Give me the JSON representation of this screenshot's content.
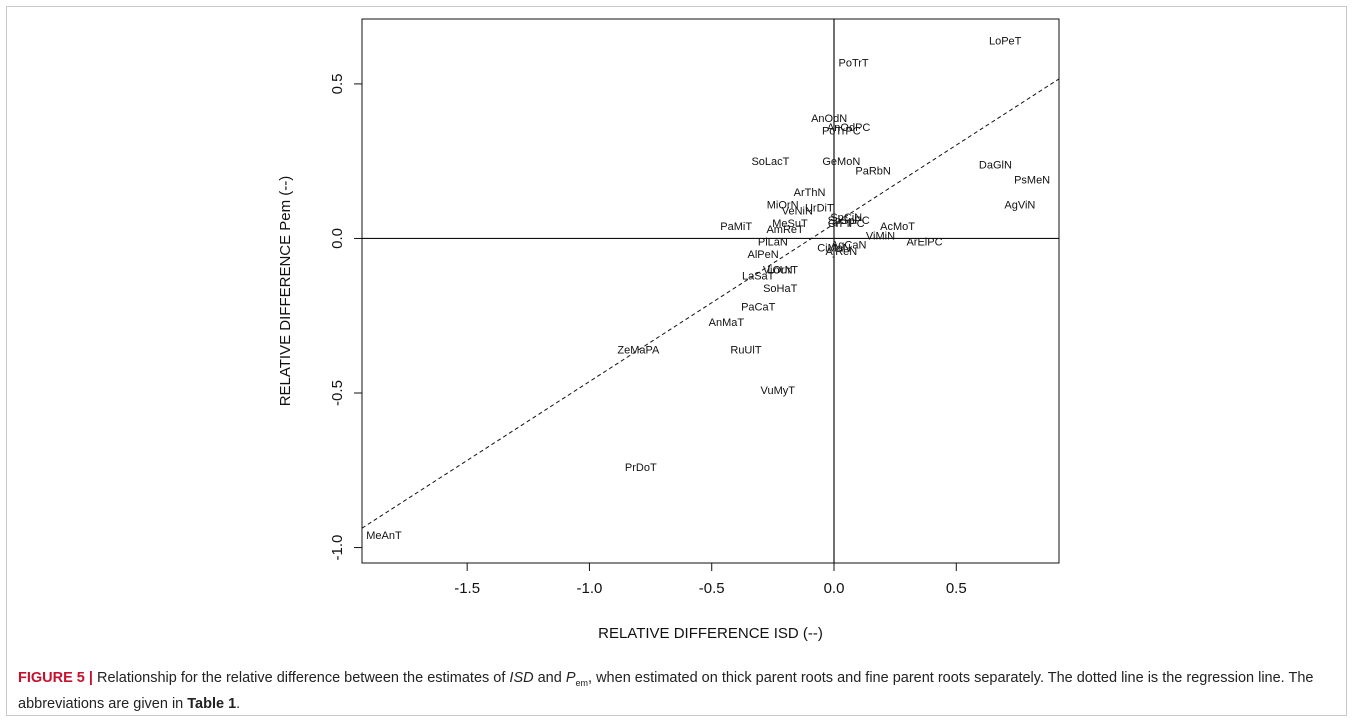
{
  "chart_data": {
    "type": "scatter",
    "xlabel": "RELATIVE DIFFERENCE ISD (--)",
    "ylabel": "RELATIVE DIFFERENCE Pem (--)",
    "xlim": [
      -1.93,
      0.92
    ],
    "ylim": [
      -1.05,
      0.71
    ],
    "x_ticks": [
      {
        "value": -1.5,
        "label": "-1.5"
      },
      {
        "value": -1.0,
        "label": "-1.0"
      },
      {
        "value": -0.5,
        "label": "-0.5"
      },
      {
        "value": 0.0,
        "label": "0.0"
      },
      {
        "value": 0.5,
        "label": "0.5"
      }
    ],
    "y_ticks": [
      {
        "value": -1.0,
        "label": "-1.0"
      },
      {
        "value": -0.5,
        "label": "-0.5"
      },
      {
        "value": 0.0,
        "label": "0.0"
      },
      {
        "value": 0.5,
        "label": "0.5"
      }
    ],
    "reference_lines": {
      "x": 0,
      "y": 0
    },
    "regression_line": {
      "style": "dashed",
      "slope": 0.51,
      "intercept": 0.047
    },
    "points": [
      {
        "label": "LoPeT",
        "x": 0.7,
        "y": 0.64
      },
      {
        "label": "PoTrT",
        "x": 0.08,
        "y": 0.57
      },
      {
        "label": "AnOdN",
        "x": -0.02,
        "y": 0.39
      },
      {
        "label": "AnOdPC",
        "x": 0.06,
        "y": 0.36
      },
      {
        "label": "PoTrPC",
        "x": 0.03,
        "y": 0.35
      },
      {
        "label": "SoLacT",
        "x": -0.26,
        "y": 0.25
      },
      {
        "label": "GeMoN",
        "x": 0.03,
        "y": 0.25
      },
      {
        "label": "PaRbN",
        "x": 0.16,
        "y": 0.22
      },
      {
        "label": "DaGlN",
        "x": 0.66,
        "y": 0.24
      },
      {
        "label": "PsMeN",
        "x": 0.81,
        "y": 0.19
      },
      {
        "label": "AgViN",
        "x": 0.76,
        "y": 0.11
      },
      {
        "label": "ArThN",
        "x": -0.1,
        "y": 0.15
      },
      {
        "label": "MiOrN",
        "x": -0.21,
        "y": 0.11
      },
      {
        "label": "UrDiT",
        "x": -0.06,
        "y": 0.1
      },
      {
        "label": "VeNiN",
        "x": -0.15,
        "y": 0.09
      },
      {
        "label": "SpCiN",
        "x": 0.05,
        "y": 0.07
      },
      {
        "label": "SpSpPC",
        "x": 0.06,
        "y": 0.06
      },
      {
        "label": "CrPiPC",
        "x": 0.05,
        "y": 0.05
      },
      {
        "label": "MeSuT",
        "x": -0.18,
        "y": 0.05
      },
      {
        "label": "AcMoT",
        "x": 0.26,
        "y": 0.04
      },
      {
        "label": "PaMiT",
        "x": -0.4,
        "y": 0.04
      },
      {
        "label": "AmReT",
        "x": -0.2,
        "y": 0.03
      },
      {
        "label": "ViMiN",
        "x": 0.19,
        "y": 0.01
      },
      {
        "label": "ArElPC",
        "x": 0.37,
        "y": -0.01
      },
      {
        "label": "PlLaN",
        "x": -0.25,
        "y": -0.01
      },
      {
        "label": "AgCaN",
        "x": 0.06,
        "y": -0.02
      },
      {
        "label": "CiMaN",
        "x": 0.0,
        "y": -0.03
      },
      {
        "label": "AjReN",
        "x": 0.03,
        "y": -0.04
      },
      {
        "label": "AlPeN",
        "x": -0.29,
        "y": -0.05
      },
      {
        "label": "ViOrN",
        "x": -0.23,
        "y": -0.1
      },
      {
        "label": "LoUrT",
        "x": -0.21,
        "y": -0.1
      },
      {
        "label": "LaSaT",
        "x": -0.31,
        "y": -0.12
      },
      {
        "label": "SoHaT",
        "x": -0.22,
        "y": -0.16
      },
      {
        "label": "PaCaT",
        "x": -0.31,
        "y": -0.22
      },
      {
        "label": "AnMaT",
        "x": -0.44,
        "y": -0.27
      },
      {
        "label": "ZeMaPA",
        "x": -0.8,
        "y": -0.36
      },
      {
        "label": "RuUlT",
        "x": -0.36,
        "y": -0.36
      },
      {
        "label": "VuMyT",
        "x": -0.23,
        "y": -0.49
      },
      {
        "label": "PrDoT",
        "x": -0.79,
        "y": -0.74
      },
      {
        "label": "MeAnT",
        "x": -1.84,
        "y": -0.96
      }
    ]
  },
  "caption": {
    "figure_label": "FIGURE 5 |",
    "text_1": " Relationship for the relative difference between the estimates of ",
    "isd": "ISD",
    "text_2": " and ",
    "p": "P",
    "p_sub": "em",
    "text_3": ", when estimated on thick parent roots and fine parent roots separately. The dotted line is the regression line. The abbreviations are given in ",
    "table_ref": "Table 1",
    "text_4": "."
  }
}
